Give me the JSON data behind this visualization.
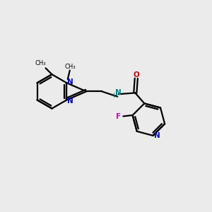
{
  "bg_color": "#ebebeb",
  "bond_color": "#000000",
  "N_color": "#0000cc",
  "O_color": "#cc0000",
  "F_color": "#cc00cc",
  "NH_color": "#008080",
  "lw": 1.6,
  "figsize": [
    3.0,
    3.0
  ],
  "dpi": 100,
  "xlim": [
    0,
    10
  ],
  "ylim": [
    0,
    10
  ]
}
